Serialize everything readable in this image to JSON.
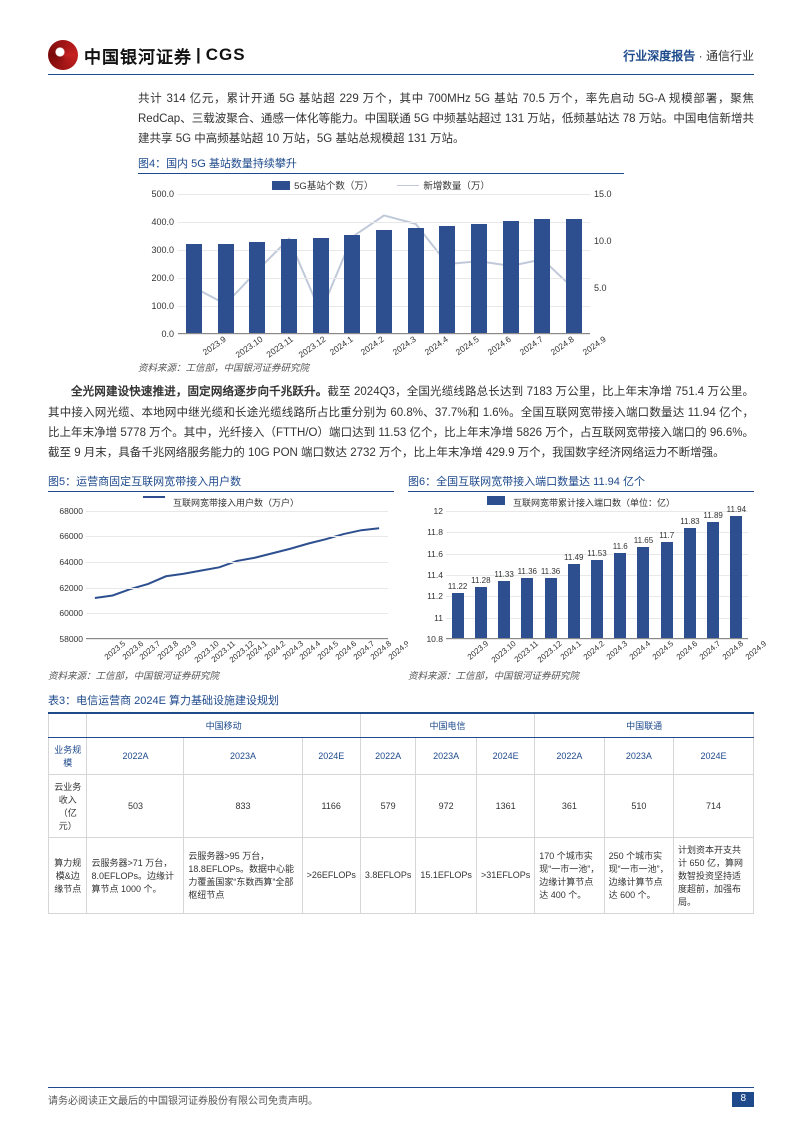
{
  "header": {
    "company_cn": "中国银河证券",
    "company_en": "CGS",
    "doc_type": "行业深度报告",
    "industry": "通信行业"
  },
  "para1": "共计 314 亿元，累计开通 5G 基站超 229 万个，其中 700MHz 5G 基站 70.5 万个，率先启动 5G-A 规模部署，聚焦 RedCap、三载波聚合、通感一体化等能力。中国联通 5G 中频基站超过 131 万站，低频基站达 78 万站。中国电信新增共建共享 5G 中高频基站超 10 万站，5G 基站总规模超 131 万站。",
  "chart4": {
    "title": "图4：国内 5G 基站数量持续攀升",
    "legend_bar": "5G基站个数（万）",
    "legend_line": "新增数量（万）",
    "bar_color": "#2d4f8f",
    "line_color": "#bfc9d9",
    "grid_color": "#e8e8e8",
    "y1_max": 500,
    "y1_ticks": [
      0,
      100,
      200,
      300,
      400,
      500
    ],
    "y2_max": 15,
    "y2_ticks": [
      5,
      10,
      15
    ],
    "x": [
      "2023.9",
      "2023.10",
      "2023.11",
      "2023.12",
      "2024.1",
      "2024.2",
      "2024.3",
      "2024.4",
      "2024.5",
      "2024.6",
      "2024.7",
      "2024.8",
      "2024.9"
    ],
    "bars": [
      318,
      321,
      328,
      338,
      340,
      350,
      368,
      375,
      383,
      392,
      400,
      408,
      410
    ],
    "line": [
      5.0,
      3.2,
      6.8,
      10.2,
      2.3,
      10.4,
      12.7,
      11.8,
      7.5,
      7.8,
      7.3,
      8.0,
      4.8
    ],
    "source": "资料来源：工信部，中国银河证券研究院"
  },
  "para2_lead": "全光网建设快速推进，固定网络逐步向千兆跃升。",
  "para2": "截至 2024Q3，全国光缆线路总长达到 7183 万公里，比上年末净增 751.4 万公里。其中接入网光缆、本地网中继光缆和长途光缆线路所占比重分别为 60.8%、37.7%和 1.6%。全国互联网宽带接入端口数量达 11.94 亿个，比上年末净增 5778 万个。其中，光纤接入（FTTH/O）端口达到 11.53 亿个，比上年末净增 5826 万个，占互联网宽带接入端口的 96.6%。截至 9 月末，具备千兆网络服务能力的 10G PON 端口数达 2732 万个，比上年末净增 429.9 万个，我国数字经济网络运力不断增强。",
  "chart5": {
    "title": "图5：运营商固定互联网宽带接入用户数",
    "legend": "互联网宽带接入用户数（万户）",
    "line_color": "#2d4f8f",
    "grid_color": "#e8e8e8",
    "y_min": 58000,
    "y_max": 68000,
    "y_ticks": [
      58000,
      60000,
      62000,
      64000,
      66000,
      68000
    ],
    "x": [
      "2023.5",
      "2023.6",
      "2023.7",
      "2023.8",
      "2023.9",
      "2023.10",
      "2023.11",
      "2023.12",
      "2024.1",
      "2024.2",
      "2024.3",
      "2024.4",
      "2024.5",
      "2024.6",
      "2024.7",
      "2024.8",
      "2024.9"
    ],
    "values": [
      61200,
      61400,
      61900,
      62300,
      62900,
      63100,
      63350,
      63600,
      64100,
      64350,
      64700,
      65050,
      65450,
      65800,
      66200,
      66500,
      66650
    ],
    "source": "资料来源：工信部，中国银河证券研究院"
  },
  "chart6": {
    "title": "图6：全国互联网宽带接入端口数量达 11.94 亿个",
    "legend": "互联网宽带累计接入端口数（单位：亿）",
    "bar_color": "#2d4f8f",
    "grid_color": "#e8e8e8",
    "y_min": 10.8,
    "y_max": 12,
    "y_ticks": [
      10.8,
      11,
      11.2,
      11.4,
      11.6,
      11.8,
      12
    ],
    "x": [
      "2023.9",
      "2023.10",
      "2023.11",
      "2023.12",
      "2024.1",
      "2024.2",
      "2024.3",
      "2024.4",
      "2024.5",
      "2024.6",
      "2024.7",
      "2024.8",
      "2024.9"
    ],
    "values": [
      11.22,
      11.28,
      11.33,
      11.36,
      11.36,
      11.49,
      11.53,
      11.6,
      11.65,
      11.7,
      11.83,
      11.89,
      11.94
    ],
    "source": "资料来源：工信部，中国银河证券研究院"
  },
  "table": {
    "title": "表3：电信运营商 2024E 算力基础设施建设规划",
    "group_headers": [
      "中国移动",
      "中国电信",
      "中国联通"
    ],
    "sub_headers": [
      "业务规模",
      "2022A",
      "2023A",
      "2024E",
      "2022A",
      "2023A",
      "2024E",
      "2022A",
      "2023A",
      "2024E"
    ],
    "row1_head": "云业务收入（亿元）",
    "row1": [
      "503",
      "833",
      "1166",
      "579",
      "972",
      "1361",
      "361",
      "510",
      "714"
    ],
    "row2_head": "算力规模&边缘节点",
    "row2": [
      "云服务器>71 万台，8.0EFLOPs。边缘计算节点 1000 个。",
      "云服务器>95 万台，18.8EFLOPs。数据中心能力覆盖国家“东数西算”全部枢纽节点",
      ">26EFLOPs",
      "3.8EFLOPs",
      "15.1EFLOPs",
      ">31EFLOPs",
      "170 个城市实现“一市一池”，边缘计算节点达 400 个。",
      "250 个城市实现“一市一池”，边缘计算节点达 600 个。",
      "计划资本开支共计 650 亿，算网数智投资坚持适度超前，加强布局。"
    ]
  },
  "footer_text": "请务必阅读正文最后的中国银河证券股份有限公司免责声明。",
  "page_number": "8"
}
